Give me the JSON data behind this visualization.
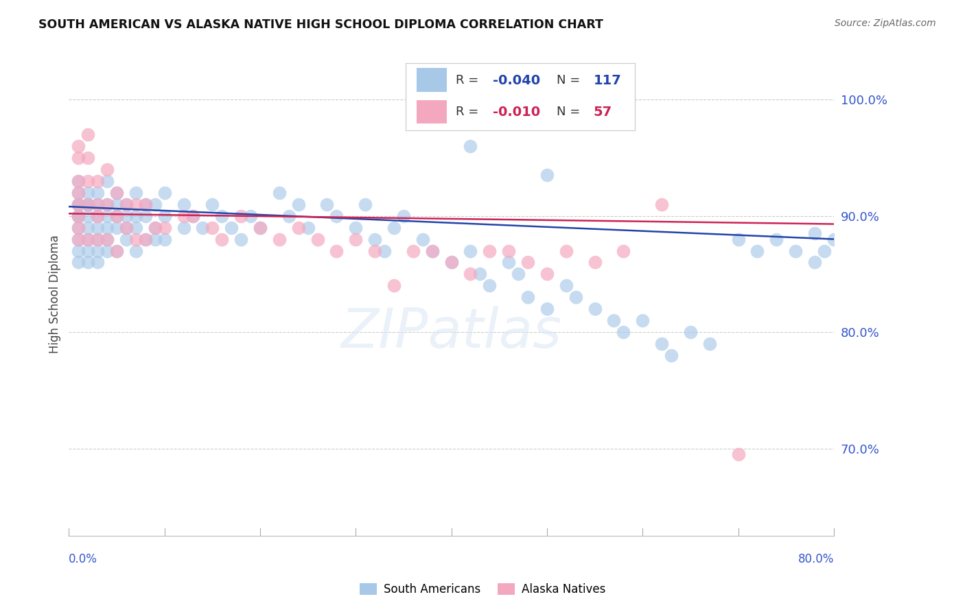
{
  "title": "SOUTH AMERICAN VS ALASKA NATIVE HIGH SCHOOL DIPLOMA CORRELATION CHART",
  "source": "Source: ZipAtlas.com",
  "ylabel": "High School Diploma",
  "right_ytick_labels": [
    "70.0%",
    "80.0%",
    "90.0%",
    "100.0%"
  ],
  "right_yticks": [
    0.7,
    0.8,
    0.9,
    1.0
  ],
  "xlim": [
    0.0,
    0.8
  ],
  "ylim": [
    0.625,
    1.04
  ],
  "watermark": "ZIPatlas",
  "legend_label_blue": "South Americans",
  "legend_label_pink": "Alaska Natives",
  "blue_color": "#a8c8e8",
  "pink_color": "#f4a8c0",
  "trend_blue": "#2244aa",
  "trend_pink": "#cc2255",
  "trend_blue_y0": 0.908,
  "trend_blue_y1": 0.88,
  "trend_pink_y0": 0.902,
  "trend_pink_y1": 0.893,
  "blue_x": [
    0.01,
    0.01,
    0.01,
    0.01,
    0.01,
    0.01,
    0.01,
    0.01,
    0.01,
    0.01,
    0.02,
    0.02,
    0.02,
    0.02,
    0.02,
    0.02,
    0.02,
    0.02,
    0.03,
    0.03,
    0.03,
    0.03,
    0.03,
    0.03,
    0.03,
    0.04,
    0.04,
    0.04,
    0.04,
    0.04,
    0.04,
    0.05,
    0.05,
    0.05,
    0.05,
    0.05,
    0.06,
    0.06,
    0.06,
    0.06,
    0.07,
    0.07,
    0.07,
    0.07,
    0.08,
    0.08,
    0.08,
    0.09,
    0.09,
    0.09,
    0.1,
    0.1,
    0.1,
    0.12,
    0.12,
    0.13,
    0.14,
    0.15,
    0.16,
    0.17,
    0.18,
    0.19,
    0.2,
    0.22,
    0.23,
    0.24,
    0.25,
    0.27,
    0.28,
    0.3,
    0.31,
    0.32,
    0.33,
    0.34,
    0.35,
    0.37,
    0.38,
    0.4,
    0.42,
    0.43,
    0.44,
    0.46,
    0.47,
    0.48,
    0.5,
    0.52,
    0.53,
    0.55,
    0.57,
    0.58,
    0.6,
    0.62,
    0.63,
    0.65,
    0.67,
    0.7,
    0.72,
    0.74,
    0.76,
    0.78,
    0.79,
    0.8,
    0.42,
    0.5,
    0.78
  ],
  "blue_y": [
    0.93,
    0.92,
    0.91,
    0.9,
    0.89,
    0.88,
    0.87,
    0.86,
    0.91,
    0.9,
    0.92,
    0.91,
    0.9,
    0.89,
    0.88,
    0.87,
    0.91,
    0.86,
    0.92,
    0.91,
    0.9,
    0.89,
    0.88,
    0.87,
    0.86,
    0.93,
    0.91,
    0.9,
    0.89,
    0.88,
    0.87,
    0.92,
    0.91,
    0.9,
    0.89,
    0.87,
    0.91,
    0.9,
    0.89,
    0.88,
    0.92,
    0.9,
    0.89,
    0.87,
    0.91,
    0.9,
    0.88,
    0.91,
    0.89,
    0.88,
    0.92,
    0.9,
    0.88,
    0.91,
    0.89,
    0.9,
    0.89,
    0.91,
    0.9,
    0.89,
    0.88,
    0.9,
    0.89,
    0.92,
    0.9,
    0.91,
    0.89,
    0.91,
    0.9,
    0.89,
    0.91,
    0.88,
    0.87,
    0.89,
    0.9,
    0.88,
    0.87,
    0.86,
    0.87,
    0.85,
    0.84,
    0.86,
    0.85,
    0.83,
    0.82,
    0.84,
    0.83,
    0.82,
    0.81,
    0.8,
    0.81,
    0.79,
    0.78,
    0.8,
    0.79,
    0.88,
    0.87,
    0.88,
    0.87,
    0.86,
    0.87,
    0.88,
    0.96,
    0.935,
    0.885
  ],
  "pink_x": [
    0.01,
    0.01,
    0.01,
    0.01,
    0.01,
    0.01,
    0.01,
    0.01,
    0.02,
    0.02,
    0.02,
    0.02,
    0.02,
    0.03,
    0.03,
    0.03,
    0.03,
    0.04,
    0.04,
    0.04,
    0.05,
    0.05,
    0.05,
    0.06,
    0.06,
    0.07,
    0.07,
    0.08,
    0.08,
    0.09,
    0.1,
    0.12,
    0.13,
    0.15,
    0.16,
    0.18,
    0.2,
    0.22,
    0.24,
    0.26,
    0.28,
    0.3,
    0.32,
    0.34,
    0.36,
    0.38,
    0.4,
    0.42,
    0.44,
    0.46,
    0.48,
    0.5,
    0.52,
    0.55,
    0.58,
    0.62,
    0.7
  ],
  "pink_y": [
    0.96,
    0.95,
    0.93,
    0.92,
    0.91,
    0.9,
    0.89,
    0.88,
    0.97,
    0.95,
    0.93,
    0.91,
    0.88,
    0.93,
    0.91,
    0.9,
    0.88,
    0.94,
    0.91,
    0.88,
    0.92,
    0.9,
    0.87,
    0.91,
    0.89,
    0.91,
    0.88,
    0.91,
    0.88,
    0.89,
    0.89,
    0.9,
    0.9,
    0.89,
    0.88,
    0.9,
    0.89,
    0.88,
    0.89,
    0.88,
    0.87,
    0.88,
    0.87,
    0.84,
    0.87,
    0.87,
    0.86,
    0.85,
    0.87,
    0.87,
    0.86,
    0.85,
    0.87,
    0.86,
    0.87,
    0.91,
    0.695
  ]
}
